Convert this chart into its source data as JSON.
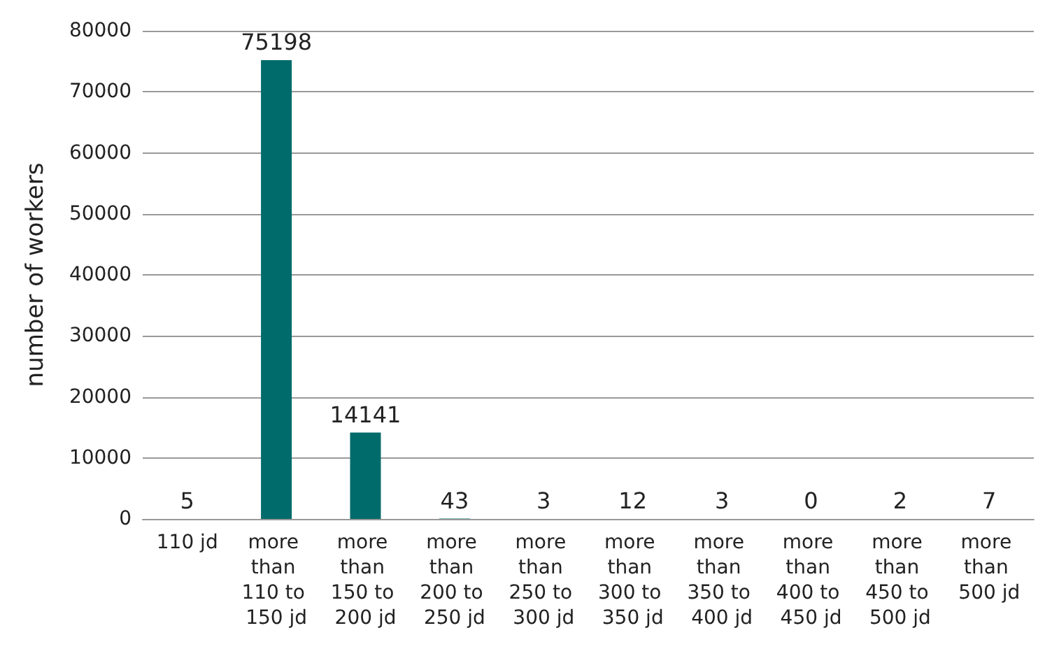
{
  "chart_data": {
    "type": "bar",
    "ylabel": "number of workers",
    "categories": [
      "110 jd",
      "more than 110 to 150 jd",
      "more than 150 to 200 jd",
      "more than 200 to 250 jd",
      "more than 250 to 300 jd",
      "more than 300 to 350 jd",
      "more than 350 to 400 jd",
      "more than 400 to 450 jd",
      "more than 450 to 500 jd",
      "more than 500 jd"
    ],
    "values": [
      5,
      75198,
      14141,
      43,
      3,
      12,
      3,
      0,
      2,
      7
    ],
    "color": "#006b6b",
    "data_labels": true,
    "ylim": [
      0,
      80000
    ],
    "yticks": [
      0,
      10000,
      20000,
      30000,
      40000,
      50000,
      60000,
      70000,
      80000
    ],
    "grid": "y"
  }
}
